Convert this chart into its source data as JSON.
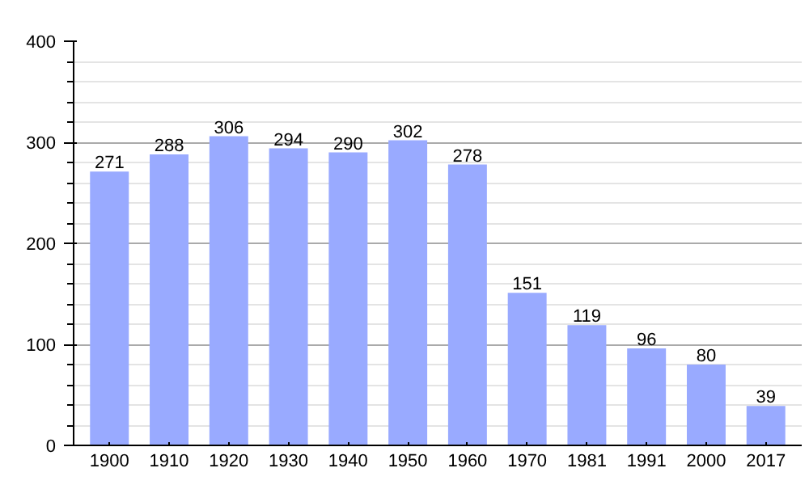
{
  "chart_data": {
    "type": "bar",
    "categories": [
      "1900",
      "1910",
      "1920",
      "1930",
      "1940",
      "1950",
      "1960",
      "1970",
      "1981",
      "1991",
      "2000",
      "2017"
    ],
    "values": [
      271,
      288,
      306,
      294,
      290,
      302,
      278,
      151,
      119,
      96,
      80,
      39
    ],
    "color": "#99aaff",
    "ylim": [
      0,
      400
    ],
    "yticks": [
      0,
      100,
      200,
      300,
      400
    ],
    "grid": "y",
    "data_labels": true
  }
}
